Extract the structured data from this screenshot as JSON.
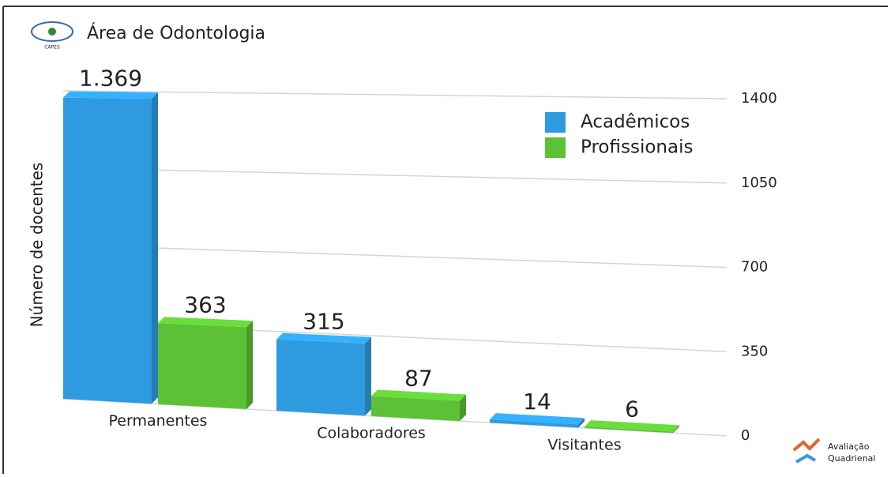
{
  "header": {
    "logo_text": "CAPES",
    "title": "Área de Odontologia"
  },
  "footer": {
    "logo_line1": "Avaliação",
    "logo_line2": "Quadrienal"
  },
  "chart_data": {
    "type": "bar3d",
    "y_label": "Número de docentes",
    "categories": [
      "Permanentes",
      "Colaboradores",
      "Visitantes"
    ],
    "series": [
      {
        "name": "Acadêmicos",
        "color": "#2e9be0",
        "values": [
          1369,
          315,
          14
        ],
        "value_labels": [
          "1.369",
          "315",
          "14"
        ]
      },
      {
        "name": "Profissionais",
        "color": "#5cc135",
        "values": [
          363,
          87,
          6
        ]
      }
    ],
    "ylim": [
      0,
      1400
    ],
    "yticks": [
      0,
      350,
      700,
      1050,
      1400
    ],
    "grid": true,
    "legend": "upper right"
  }
}
